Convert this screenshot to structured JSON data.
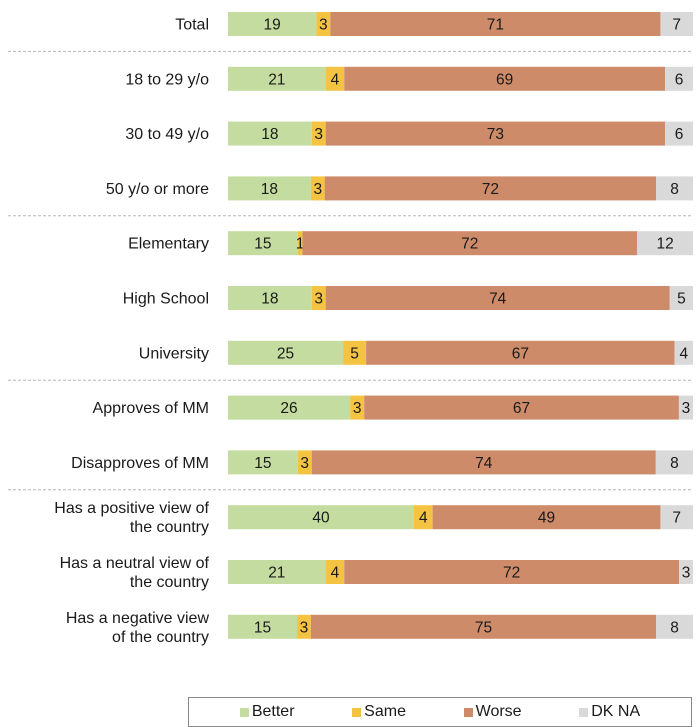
{
  "chart_data": {
    "type": "bar",
    "orientation": "horizontal-stacked-100",
    "categories": [
      [
        "Total"
      ],
      [
        "18 to 29 y/o"
      ],
      [
        "30 to 49 y/o"
      ],
      [
        "50 y/o or more"
      ],
      [
        "Elementary"
      ],
      [
        "High School"
      ],
      [
        "University"
      ],
      [
        "Approves of MM"
      ],
      [
        "Disapproves of MM"
      ],
      [
        "Has a positive view of",
        "the country"
      ],
      [
        "Has a neutral view of",
        "the country"
      ],
      [
        "Has a negative view",
        "of the country"
      ]
    ],
    "group_breaks_after": [
      0,
      3,
      6,
      8
    ],
    "series": [
      {
        "name": "Better",
        "color": "#c5dca0",
        "values": [
          19,
          21,
          18,
          18,
          15,
          18,
          25,
          26,
          15,
          40,
          21,
          15
        ]
      },
      {
        "name": "Same",
        "color": "#f5c342",
        "values": [
          3,
          4,
          3,
          3,
          1,
          3,
          5,
          3,
          3,
          4,
          4,
          3
        ]
      },
      {
        "name": "Worse",
        "color": "#cd8b6a",
        "values": [
          71,
          69,
          73,
          72,
          72,
          74,
          67,
          67,
          74,
          49,
          72,
          75
        ]
      },
      {
        "name": "DK NA",
        "color": "#d9d9d9",
        "values": [
          7,
          6,
          6,
          8,
          12,
          5,
          4,
          3,
          8,
          7,
          3,
          8
        ]
      }
    ],
    "legend": "bottom"
  }
}
